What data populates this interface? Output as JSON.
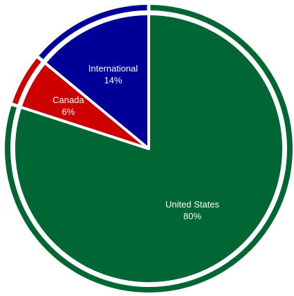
{
  "chart_data": {
    "type": "pie",
    "title": "",
    "slices": [
      {
        "label": "United States",
        "value": 80,
        "value_label": "80%",
        "color": "#006633"
      },
      {
        "label": "Canada",
        "value": 6,
        "value_label": "6%",
        "color": "#cc0000"
      },
      {
        "label": "International",
        "value": 14,
        "value_label": "14%",
        "color": "#000099"
      }
    ],
    "start_at": "top",
    "direction": "clockwise",
    "outer_ring": true,
    "legend": "none"
  }
}
